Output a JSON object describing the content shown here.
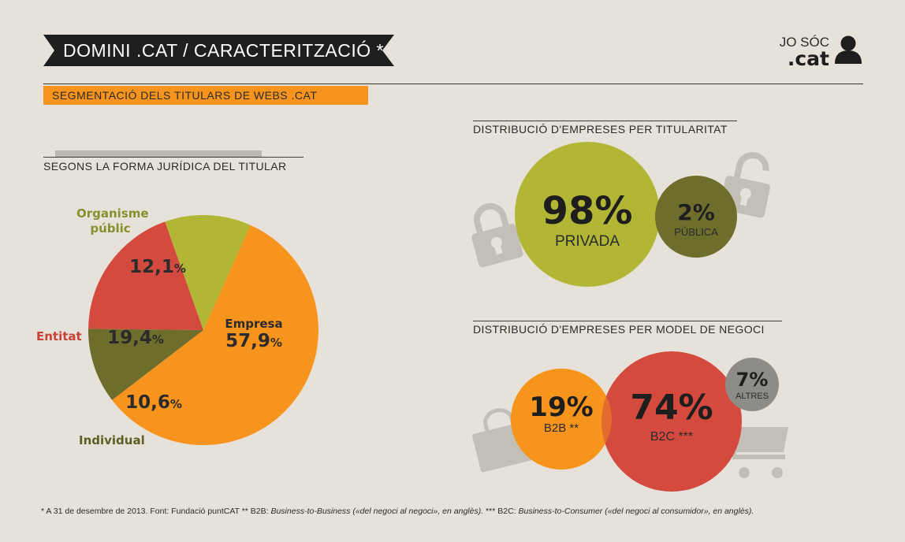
{
  "header": {
    "title": "DOMINI .CAT  /  CARACTERITZACIÓ *",
    "brand_top": "JO SÓC",
    "brand_bottom": ".cat"
  },
  "section": {
    "title": "SEGMENTACIÓ DELS TITULARS DE WEBS .CAT"
  },
  "colors": {
    "orange": "#f7941d",
    "red": "#d44a3e",
    "lime": "#b1b734",
    "olive": "#6e6d2c",
    "grey": "#8e8c86",
    "banner": "#1f1f1f",
    "background": "#e6e2d9"
  },
  "icons": [
    "person-icon",
    "padlock-icon",
    "shopping-bag-icon",
    "shopping-cart-icon"
  ],
  "chart_data": [
    {
      "type": "pie",
      "title": "SEGONS LA FORMA JURÍDICA DEL TITULAR",
      "unit": "%",
      "slices": [
        {
          "label": "Empresa",
          "value": 57.9,
          "display": "57,9",
          "color": "#f7941d"
        },
        {
          "label": "Individual",
          "value": 10.6,
          "display": "10,6",
          "color": "#6e6d2c"
        },
        {
          "label": "Entitat",
          "value": 19.4,
          "display": "19,4",
          "color": "#d44a3e"
        },
        {
          "label": "Organisme públic",
          "value": 12.1,
          "display": "12,1",
          "color": "#b1b734"
        }
      ]
    },
    {
      "type": "bubble",
      "title": "DISTRIBUCIÓ D'EMPRESES PER TITULARITAT",
      "unit": "%",
      "items": [
        {
          "label": "PRIVADA",
          "value": 98,
          "display": "98%",
          "color": "#b1b734"
        },
        {
          "label": "PÚBLICA",
          "value": 2,
          "display": "2%",
          "color": "#6e6d2c"
        }
      ]
    },
    {
      "type": "bubble",
      "title": "DISTRIBUCIÓ D'EMPRESES PER MODEL DE NEGOCI",
      "unit": "%",
      "items": [
        {
          "label": "B2B **",
          "value": 19,
          "display": "19%",
          "color": "#f7941d"
        },
        {
          "label": "B2C ***",
          "value": 74,
          "display": "74%",
          "color": "#d44a3e"
        },
        {
          "label": "ALTRES",
          "value": 7,
          "display": "7%",
          "color": "#8e8c86"
        }
      ]
    }
  ],
  "footnote": {
    "part1": "* A 31 de desembre de 2013. Font: Fundació puntCAT   ** B2B: ",
    "part1_italic": "Business-to-Business («del negoci al negoci», en anglès).",
    "part2": "   *** B2C: ",
    "part2_italic": "Business-to-Consumer («del negoci al consumidor», en anglès)."
  }
}
